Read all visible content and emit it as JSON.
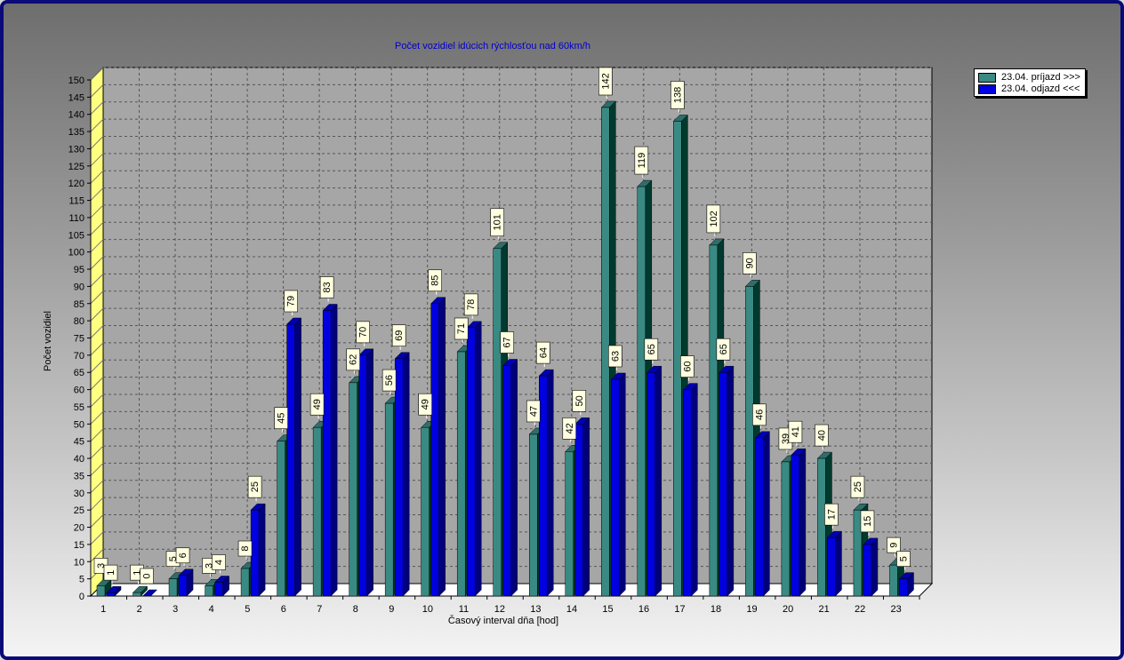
{
  "chart_data": {
    "type": "bar",
    "title": "Počet vozidiel idúcich rýchlosťou nad 60km/h",
    "xlabel": "Časový interval dňa [hod]",
    "ylabel": "Počet vozidiel",
    "ylim": [
      0,
      150
    ],
    "ytick_step": 5,
    "grid": true,
    "legend_position": "top-right",
    "categories": [
      "1",
      "2",
      "3",
      "4",
      "5",
      "6",
      "7",
      "8",
      "9",
      "10",
      "11",
      "12",
      "13",
      "14",
      "15",
      "16",
      "17",
      "18",
      "19",
      "20",
      "21",
      "22",
      "23"
    ],
    "series": [
      {
        "name": "23.04. príjazd >>>",
        "color": "#3a8a84",
        "values": [
          3,
          1,
          5,
          3,
          8,
          45,
          49,
          62,
          56,
          49,
          71,
          101,
          47,
          42,
          142,
          119,
          138,
          102,
          90,
          39,
          40,
          25,
          9
        ]
      },
      {
        "name": "23.04. odjazd <<<",
        "color": "#0000e0",
        "values": [
          1,
          0,
          6,
          4,
          25,
          79,
          83,
          70,
          69,
          85,
          78,
          67,
          64,
          50,
          63,
          65,
          60,
          65,
          46,
          41,
          17,
          15,
          5
        ]
      }
    ]
  }
}
